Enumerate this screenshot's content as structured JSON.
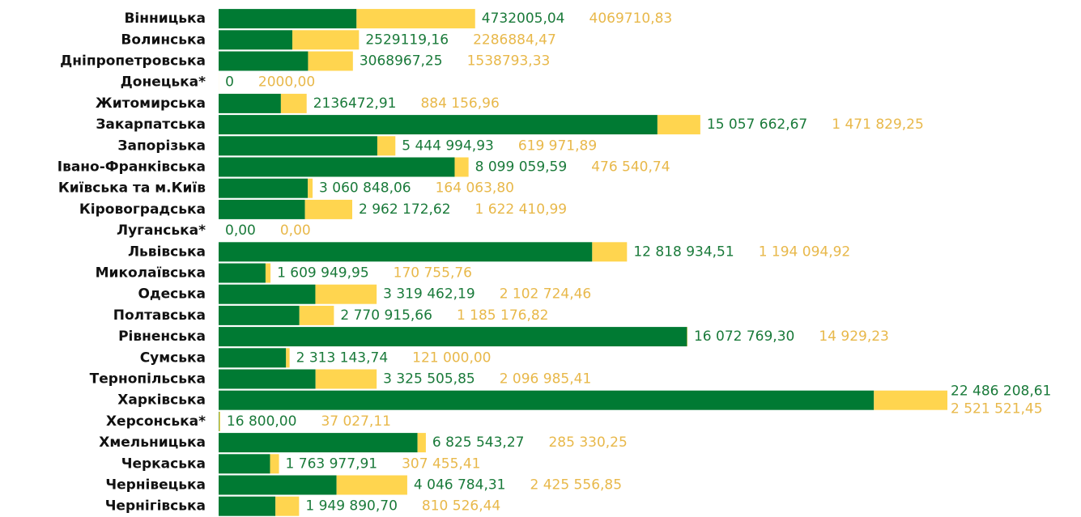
{
  "chart_data": {
    "type": "bar",
    "orientation": "horizontal",
    "stacked": true,
    "categories": [
      "Вінницька",
      "Волинська",
      "Дніпропетровська",
      "Донецька*",
      "Житомирська",
      "Закарпатська",
      "Запорізька",
      "Івано-Франківська",
      "Київська та м.Київ",
      "Кіровоградська",
      "Луганська*",
      "Львівська",
      "Миколаївська",
      "Одеська",
      "Полтавська",
      "Рівненська",
      "Сумська",
      "Тернопільська",
      "Харківська",
      "Херсонська*",
      "Хмельницька",
      "Черкаська",
      "Чернівецька",
      "Чернігівська"
    ],
    "series": [
      {
        "color": "#007a33",
        "values": [
          4732005.04,
          2529119.16,
          3068967.25,
          0,
          2136472.91,
          15057662.67,
          5444994.93,
          8099059.59,
          3060848.06,
          2962172.62,
          0,
          12818934.51,
          1609949.95,
          3319462.19,
          2770915.66,
          16072769.3,
          2313143.74,
          3325505.85,
          22486208.61,
          16800.0,
          6825543.27,
          1763977.91,
          4046784.31,
          1949890.7
        ],
        "value_labels": [
          "4732005,04",
          "2529119,16",
          "3068967,25",
          "0",
          "2136472,91",
          "15 057 662,67",
          "5 444 994,93",
          "8 099 059,59",
          "3 060 848,06",
          "2 962 172,62",
          "0,00",
          "12 818 934,51",
          "1 609 949,95",
          "3 319 462,19",
          "2 770 915,66",
          "16 072 769,30",
          "2 313 143,74",
          "3 325 505,85",
          "22 486 208,61",
          "16 800,00",
          "6 825 543,27",
          "1 763 977,91",
          "4 046 784,31",
          "1 949 890,70"
        ]
      },
      {
        "color": "#ffd54f",
        "values": [
          4069710.83,
          2286884.47,
          1538793.33,
          2000.0,
          884156.96,
          1471829.25,
          619971.89,
          476540.74,
          164063.8,
          1622410.99,
          0,
          1194094.92,
          170755.76,
          2102724.46,
          1185176.82,
          14929.23,
          121000.0,
          2096985.41,
          2521521.45,
          37027.11,
          285330.25,
          307455.41,
          2425556.85,
          810526.44
        ],
        "value_labels": [
          "4069710,83",
          "2286884,47",
          "1538793,33",
          "2000,00",
          "884 156,96",
          "1 471 829,25",
          "619 971,89",
          "476 540,74",
          "164 063,80",
          "1 622 410,99",
          "0,00",
          "1 194 094,92",
          "170 755,76",
          "2 102 724,46",
          "1 185 176,82",
          "14 929,23",
          "121 000,00",
          "2 096 985,41",
          "2 521 521,45",
          "37 027,11",
          "285 330,25",
          "307 455,41",
          "2 425 556,85",
          "810 526,44"
        ]
      }
    ]
  }
}
